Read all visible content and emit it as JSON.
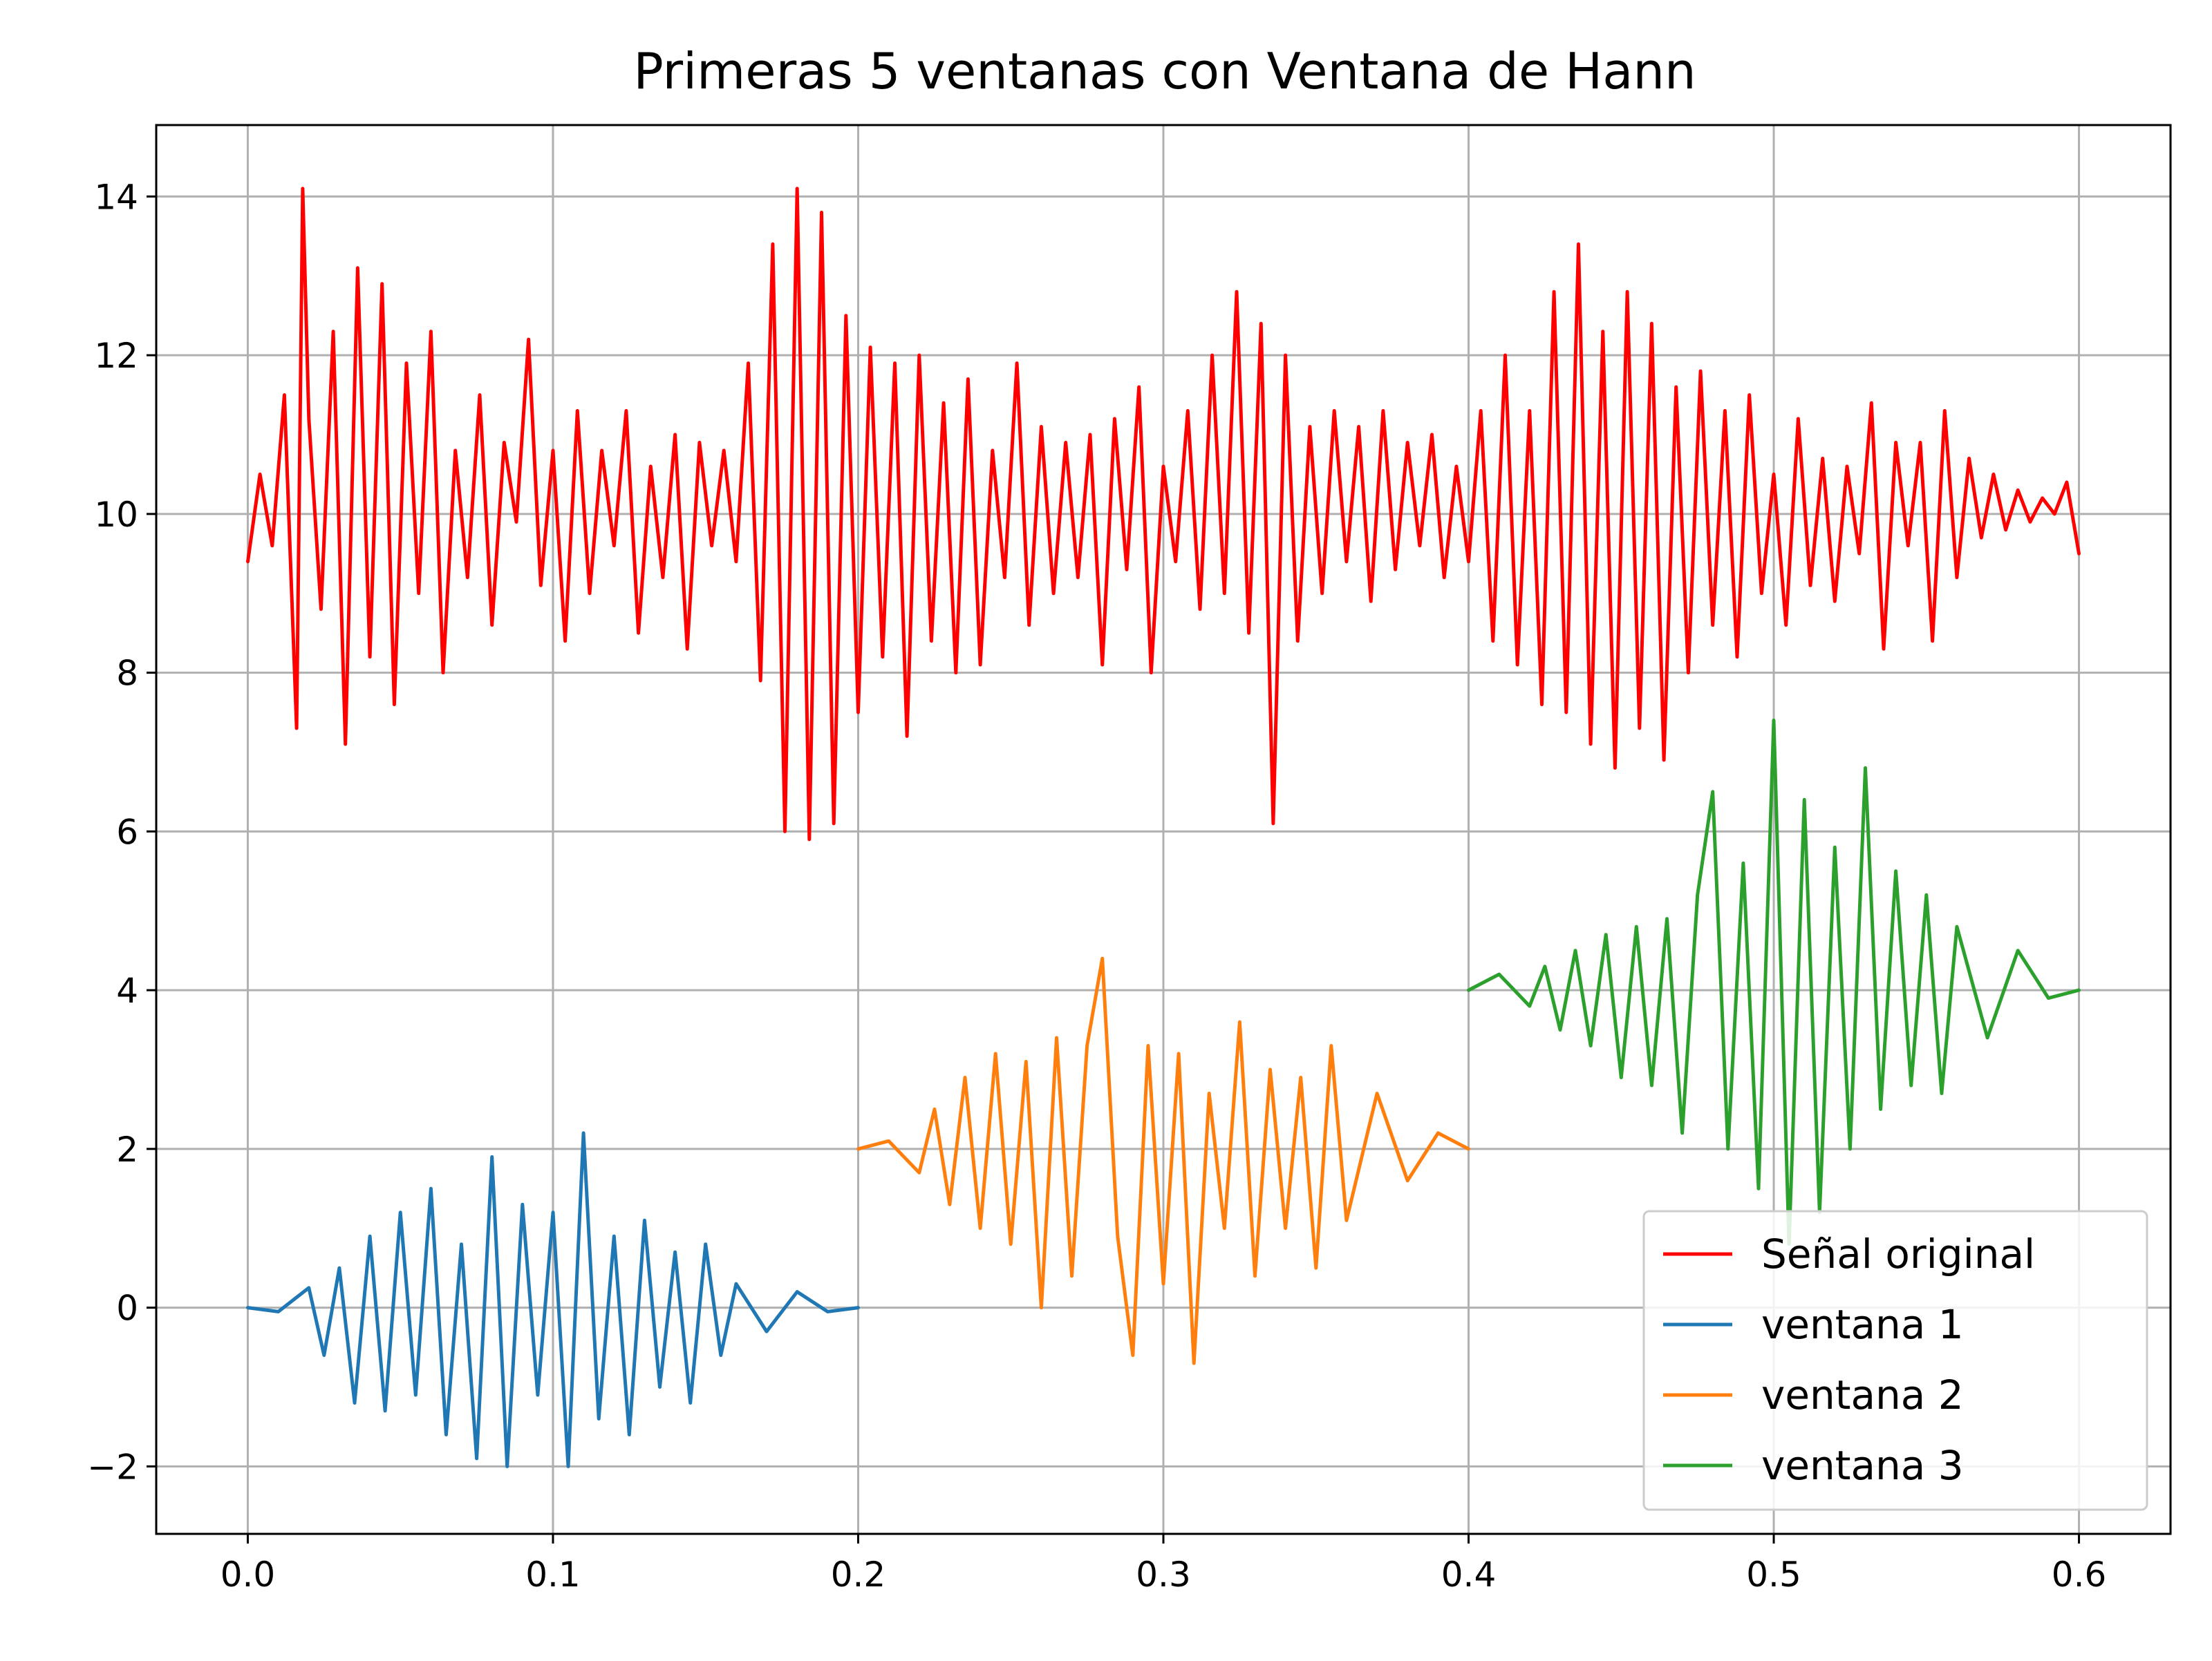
{
  "chart_data": {
    "type": "line",
    "title": "Primeras 5 ventanas con Ventana de Hann",
    "xlabel": "",
    "ylabel": "",
    "xlim": [
      -0.03,
      0.63
    ],
    "ylim": [
      -2.85,
      14.9
    ],
    "x_ticks": [
      0.0,
      0.1,
      0.2,
      0.3,
      0.4,
      0.5,
      0.6
    ],
    "x_tick_labels": [
      "0.0",
      "0.1",
      "0.2",
      "0.3",
      "0.4",
      "0.5",
      "0.6"
    ],
    "y_ticks": [
      -2,
      0,
      2,
      4,
      6,
      8,
      10,
      12,
      14
    ],
    "y_tick_labels": [
      "−2",
      "0",
      "2",
      "4",
      "6",
      "8",
      "10",
      "12",
      "14"
    ],
    "grid": true,
    "legend_position": "lower-right",
    "series": [
      {
        "name": "Señal original",
        "color": "#ff0000",
        "x": [
          0.0,
          0.004,
          0.008,
          0.012,
          0.016,
          0.018,
          0.02,
          0.024,
          0.028,
          0.032,
          0.036,
          0.04,
          0.044,
          0.048,
          0.052,
          0.056,
          0.06,
          0.064,
          0.068,
          0.072,
          0.076,
          0.08,
          0.084,
          0.088,
          0.092,
          0.096,
          0.1,
          0.104,
          0.108,
          0.112,
          0.116,
          0.12,
          0.124,
          0.128,
          0.132,
          0.136,
          0.14,
          0.144,
          0.148,
          0.152,
          0.156,
          0.16,
          0.164,
          0.168,
          0.172,
          0.176,
          0.18,
          0.184,
          0.188,
          0.192,
          0.196,
          0.2,
          0.204,
          0.208,
          0.212,
          0.216,
          0.22,
          0.224,
          0.228,
          0.232,
          0.236,
          0.24,
          0.244,
          0.248,
          0.252,
          0.256,
          0.26,
          0.264,
          0.268,
          0.272,
          0.276,
          0.28,
          0.284,
          0.288,
          0.292,
          0.296,
          0.3,
          0.304,
          0.308,
          0.312,
          0.316,
          0.32,
          0.324,
          0.328,
          0.332,
          0.336,
          0.34,
          0.344,
          0.348,
          0.352,
          0.356,
          0.36,
          0.364,
          0.368,
          0.372,
          0.376,
          0.38,
          0.384,
          0.388,
          0.392,
          0.396,
          0.4,
          0.404,
          0.408,
          0.412,
          0.416,
          0.42,
          0.424,
          0.428,
          0.432,
          0.436,
          0.44,
          0.444,
          0.448,
          0.452,
          0.456,
          0.46,
          0.464,
          0.468,
          0.472,
          0.476,
          0.48,
          0.484,
          0.488,
          0.492,
          0.496,
          0.5,
          0.504,
          0.508,
          0.512,
          0.516,
          0.52,
          0.524,
          0.528,
          0.532,
          0.536,
          0.54,
          0.544,
          0.548,
          0.552,
          0.556,
          0.56,
          0.564,
          0.568,
          0.572,
          0.576,
          0.58,
          0.584,
          0.588,
          0.592,
          0.596,
          0.6
        ],
        "y": [
          9.4,
          10.5,
          9.6,
          11.5,
          7.3,
          14.1,
          11.2,
          8.8,
          12.3,
          7.1,
          13.1,
          8.2,
          12.9,
          7.6,
          11.9,
          9.0,
          12.3,
          8.0,
          10.8,
          9.2,
          11.5,
          8.6,
          10.9,
          9.9,
          12.2,
          9.1,
          10.8,
          8.4,
          11.3,
          9.0,
          10.8,
          9.6,
          11.3,
          8.5,
          10.6,
          9.2,
          11.0,
          8.3,
          10.9,
          9.6,
          10.8,
          9.4,
          11.9,
          7.9,
          13.4,
          6.0,
          14.1,
          5.9,
          13.8,
          6.1,
          12.5,
          7.5,
          12.1,
          8.2,
          11.9,
          7.2,
          12.0,
          8.4,
          11.4,
          8.0,
          11.7,
          8.1,
          10.8,
          9.2,
          11.9,
          8.6,
          11.1,
          9.0,
          10.9,
          9.2,
          11.0,
          8.1,
          11.2,
          9.3,
          11.6,
          8.0,
          10.6,
          9.4,
          11.3,
          8.8,
          12.0,
          9.0,
          12.8,
          8.5,
          12.4,
          6.1,
          12.0,
          8.4,
          11.1,
          9.0,
          11.3,
          9.4,
          11.1,
          8.9,
          11.3,
          9.3,
          10.9,
          9.6,
          11.0,
          9.2,
          10.6,
          9.4,
          11.3,
          8.4,
          12.0,
          8.1,
          11.3,
          7.6,
          12.8,
          7.5,
          13.4,
          7.1,
          12.3,
          6.8,
          12.8,
          7.3,
          12.4,
          6.9,
          11.6,
          8.0,
          11.8,
          8.6,
          11.3,
          8.2,
          11.5,
          9.0,
          10.5,
          8.6,
          11.2,
          9.1,
          10.7,
          8.9,
          10.6,
          9.5,
          11.4,
          8.3,
          10.9,
          9.6,
          10.9,
          8.4,
          11.3,
          9.2,
          10.7,
          9.7,
          10.5,
          9.8,
          10.3,
          9.9,
          10.2,
          10.0,
          10.4,
          9.5
        ]
      },
      {
        "name": "ventana 1",
        "color": "#1f77b4",
        "x": [
          0.0,
          0.01,
          0.02,
          0.025,
          0.03,
          0.035,
          0.04,
          0.045,
          0.05,
          0.055,
          0.06,
          0.065,
          0.07,
          0.075,
          0.08,
          0.085,
          0.09,
          0.095,
          0.1,
          0.105,
          0.11,
          0.115,
          0.12,
          0.125,
          0.13,
          0.135,
          0.14,
          0.145,
          0.15,
          0.155,
          0.16,
          0.17,
          0.18,
          0.19,
          0.2
        ],
        "y": [
          0.0,
          -0.05,
          0.25,
          -0.6,
          0.5,
          -1.2,
          0.9,
          -1.3,
          1.2,
          -1.1,
          1.5,
          -1.6,
          0.8,
          -1.9,
          1.9,
          -2.0,
          1.3,
          -1.1,
          1.2,
          -2.0,
          2.2,
          -1.4,
          0.9,
          -1.6,
          1.1,
          -1.0,
          0.7,
          -1.2,
          0.8,
          -0.6,
          0.3,
          -0.3,
          0.2,
          -0.05,
          0.0
        ]
      },
      {
        "name": "ventana 2",
        "color": "#ff7f0e",
        "x": [
          0.2,
          0.21,
          0.22,
          0.225,
          0.23,
          0.235,
          0.24,
          0.245,
          0.25,
          0.255,
          0.26,
          0.265,
          0.27,
          0.275,
          0.28,
          0.285,
          0.29,
          0.295,
          0.3,
          0.305,
          0.31,
          0.315,
          0.32,
          0.325,
          0.33,
          0.335,
          0.34,
          0.345,
          0.35,
          0.355,
          0.36,
          0.37,
          0.38,
          0.39,
          0.4
        ],
        "y": [
          2.0,
          2.1,
          1.7,
          2.5,
          1.3,
          2.9,
          1.0,
          3.2,
          0.8,
          3.1,
          0.0,
          3.4,
          0.4,
          3.3,
          4.4,
          0.9,
          -0.6,
          3.3,
          0.3,
          3.2,
          -0.7,
          2.7,
          1.0,
          3.6,
          0.4,
          3.0,
          1.0,
          2.9,
          0.5,
          3.3,
          1.1,
          2.7,
          1.6,
          2.2,
          2.0
        ]
      },
      {
        "name": "ventana 3",
        "color": "#2ca02c",
        "x": [
          0.4,
          0.41,
          0.42,
          0.425,
          0.43,
          0.435,
          0.44,
          0.445,
          0.45,
          0.455,
          0.46,
          0.465,
          0.47,
          0.475,
          0.48,
          0.485,
          0.49,
          0.495,
          0.5,
          0.505,
          0.51,
          0.515,
          0.52,
          0.525,
          0.53,
          0.535,
          0.54,
          0.545,
          0.55,
          0.555,
          0.56,
          0.57,
          0.58,
          0.59,
          0.6
        ],
        "y": [
          4.0,
          4.2,
          3.8,
          4.3,
          3.5,
          4.5,
          3.3,
          4.7,
          2.9,
          4.8,
          2.8,
          4.9,
          2.2,
          5.2,
          6.5,
          2.0,
          5.6,
          1.5,
          7.4,
          0.8,
          6.4,
          1.2,
          5.8,
          2.0,
          6.8,
          2.5,
          5.5,
          2.8,
          5.2,
          2.7,
          4.8,
          3.4,
          4.5,
          3.9,
          4.0
        ]
      }
    ]
  }
}
